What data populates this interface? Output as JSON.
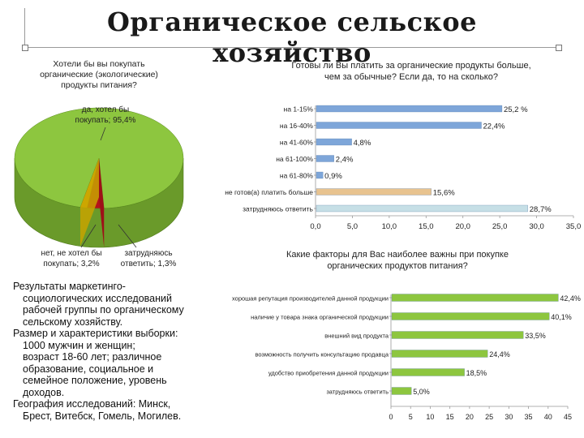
{
  "slide": {
    "title": "Органическое сельское хозяйство"
  },
  "description": {
    "lines": [
      {
        "text": "Результаты маркетинго-",
        "indent": false
      },
      {
        "text": "социологических исследований",
        "indent": true
      },
      {
        "text": "рабочей группы по органическому",
        "indent": true
      },
      {
        "text": "сельскому хозяйству.",
        "indent": true
      },
      {
        "text": "Размер и характеристики выборки:",
        "indent": false
      },
      {
        "text": "1000 мужчин и женщин;",
        "indent": true
      },
      {
        "text": "возраст 18-60 лет; различное",
        "indent": true
      },
      {
        "text": "образование, социальное и",
        "indent": true
      },
      {
        "text": "семейное положение, уровень",
        "indent": true
      },
      {
        "text": "доходов.",
        "indent": true
      },
      {
        "text": "География исследований: Минск,",
        "indent": false
      },
      {
        "text": "Брест, Витебск, Гомель, Могилев.",
        "indent": true
      }
    ]
  },
  "chart_data": [
    {
      "type": "pie",
      "title": [
        "Хотели бы вы покупать",
        "органические (экологические)",
        "продукты питания?"
      ],
      "slices": [
        {
          "label": [
            "да, хотел бы",
            "покупать; 95,4%"
          ],
          "value": 95.4,
          "color": "#8dc63f"
        },
        {
          "label": [
            "нет, не хотел бы",
            "покупать; 3,2%"
          ],
          "value": 3.2,
          "color": "#b5121b"
        },
        {
          "label": [
            "затрудняюсь",
            "ответить; 1,3%"
          ],
          "value": 1.3,
          "color": "#f2b705"
        }
      ]
    },
    {
      "type": "bar",
      "orientation": "horizontal",
      "title": [
        "Готовы ли Вы платить за органические продукты больше,",
        "чем за обычные? Если да, то на сколько?"
      ],
      "categories": [
        "на 1-15%",
        "на 16-40%",
        "на 41-60%",
        "на 61-100%",
        "на 61-80%",
        "не готов(а) платить больше",
        "затрудняюсь ответить"
      ],
      "values": [
        25.2,
        22.4,
        4.8,
        2.4,
        0.9,
        15.6,
        28.7
      ],
      "value_labels": [
        "25,2 %",
        "22,4%",
        "4,8%",
        "2,4%",
        "0,9%",
        "15,6%",
        "28,7%"
      ],
      "bar_colors": [
        "#7ea6d9",
        "#7ea6d9",
        "#7ea6d9",
        "#7ea6d9",
        "#7ea6d9",
        "#e8c38f",
        "#c6dfe6"
      ],
      "xlim": [
        0,
        35
      ],
      "xticks": [
        0,
        5,
        10,
        15,
        20,
        25,
        30,
        35
      ],
      "xtick_labels": [
        "0,0",
        "5,0",
        "10,0",
        "15,0",
        "20,0",
        "25,0",
        "30,0",
        "35,0"
      ]
    },
    {
      "type": "bar",
      "orientation": "horizontal",
      "title": [
        "Какие факторы для Вас наиболее важны при покупке",
        "органических продуктов питания?"
      ],
      "categories": [
        "хорошая репутация производителей данной продукции",
        "наличие у товара знака органической продукции",
        "внешний вид продукта",
        "возможность получить консультацию продавца",
        "удобство приобретения данной продукции",
        "затрудняюсь ответить"
      ],
      "values": [
        42.4,
        40.1,
        33.5,
        24.4,
        18.5,
        5.0
      ],
      "value_labels": [
        "42,4%",
        "40,1%",
        "33,5%",
        "24,4%",
        "18,5%",
        "5,0%"
      ],
      "bar_color": "#8dc63f",
      "xlim": [
        0,
        45
      ],
      "xticks": [
        0,
        5,
        10,
        15,
        20,
        25,
        30,
        35,
        40,
        45
      ],
      "xtick_labels": [
        "0",
        "5",
        "10",
        "15",
        "20",
        "25",
        "30",
        "35",
        "40",
        "45"
      ]
    }
  ]
}
